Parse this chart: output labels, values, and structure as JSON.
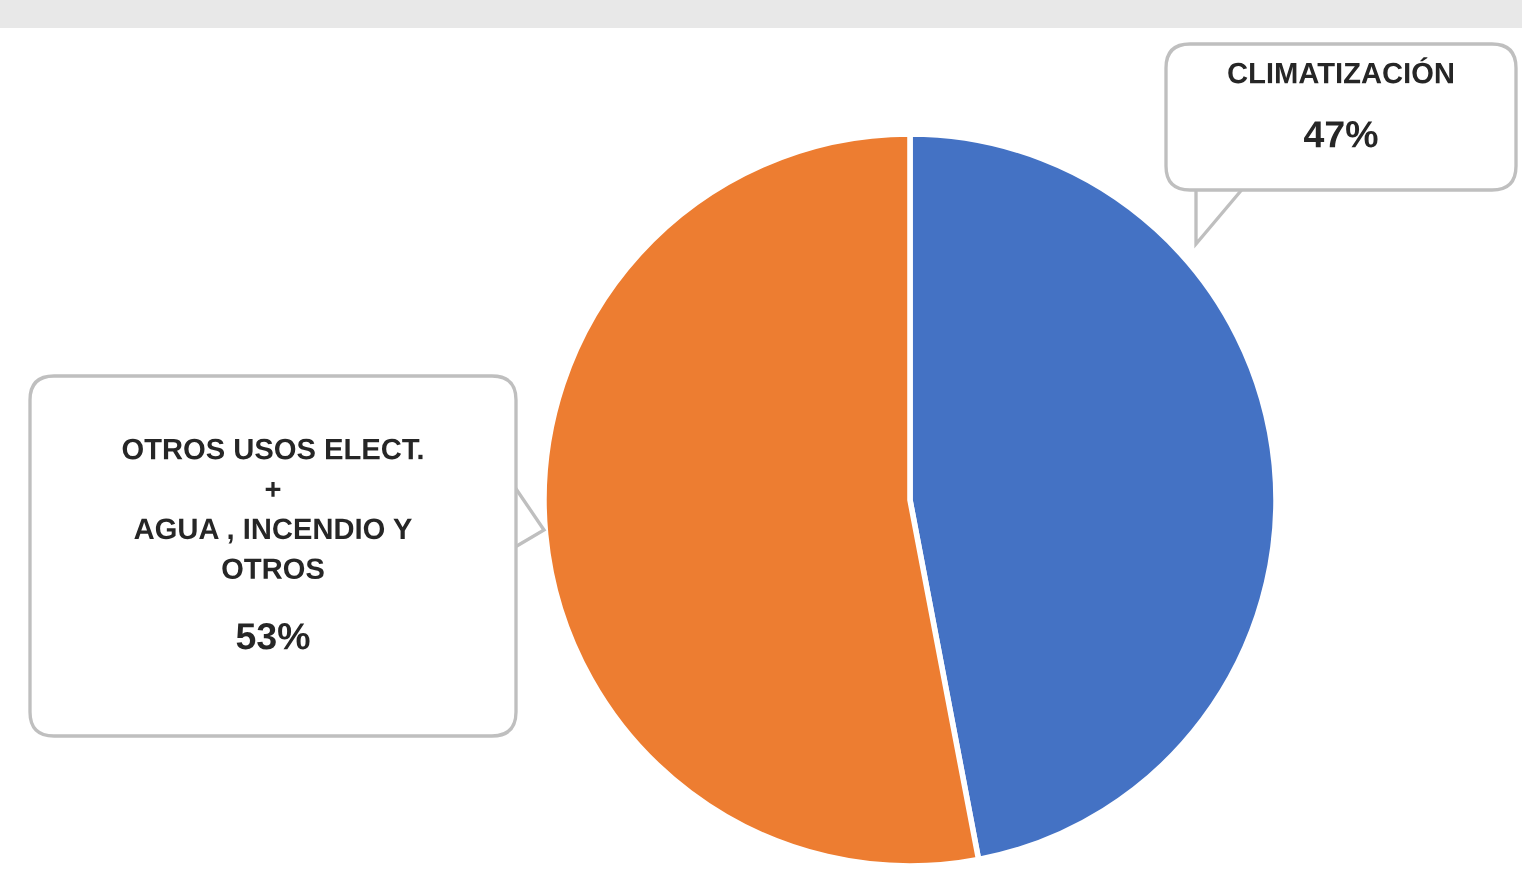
{
  "chart_data": {
    "type": "pie",
    "categories": [
      "CLIMATIZACIÓN",
      "OTROS USOS ELECT.\n+\nAGUA , INCENDIO Y\nOTROS"
    ],
    "values": [
      47,
      53
    ],
    "colors": [
      "#4472c4",
      "#ed7d31"
    ],
    "value_labels": [
      "47%",
      "53%"
    ]
  }
}
